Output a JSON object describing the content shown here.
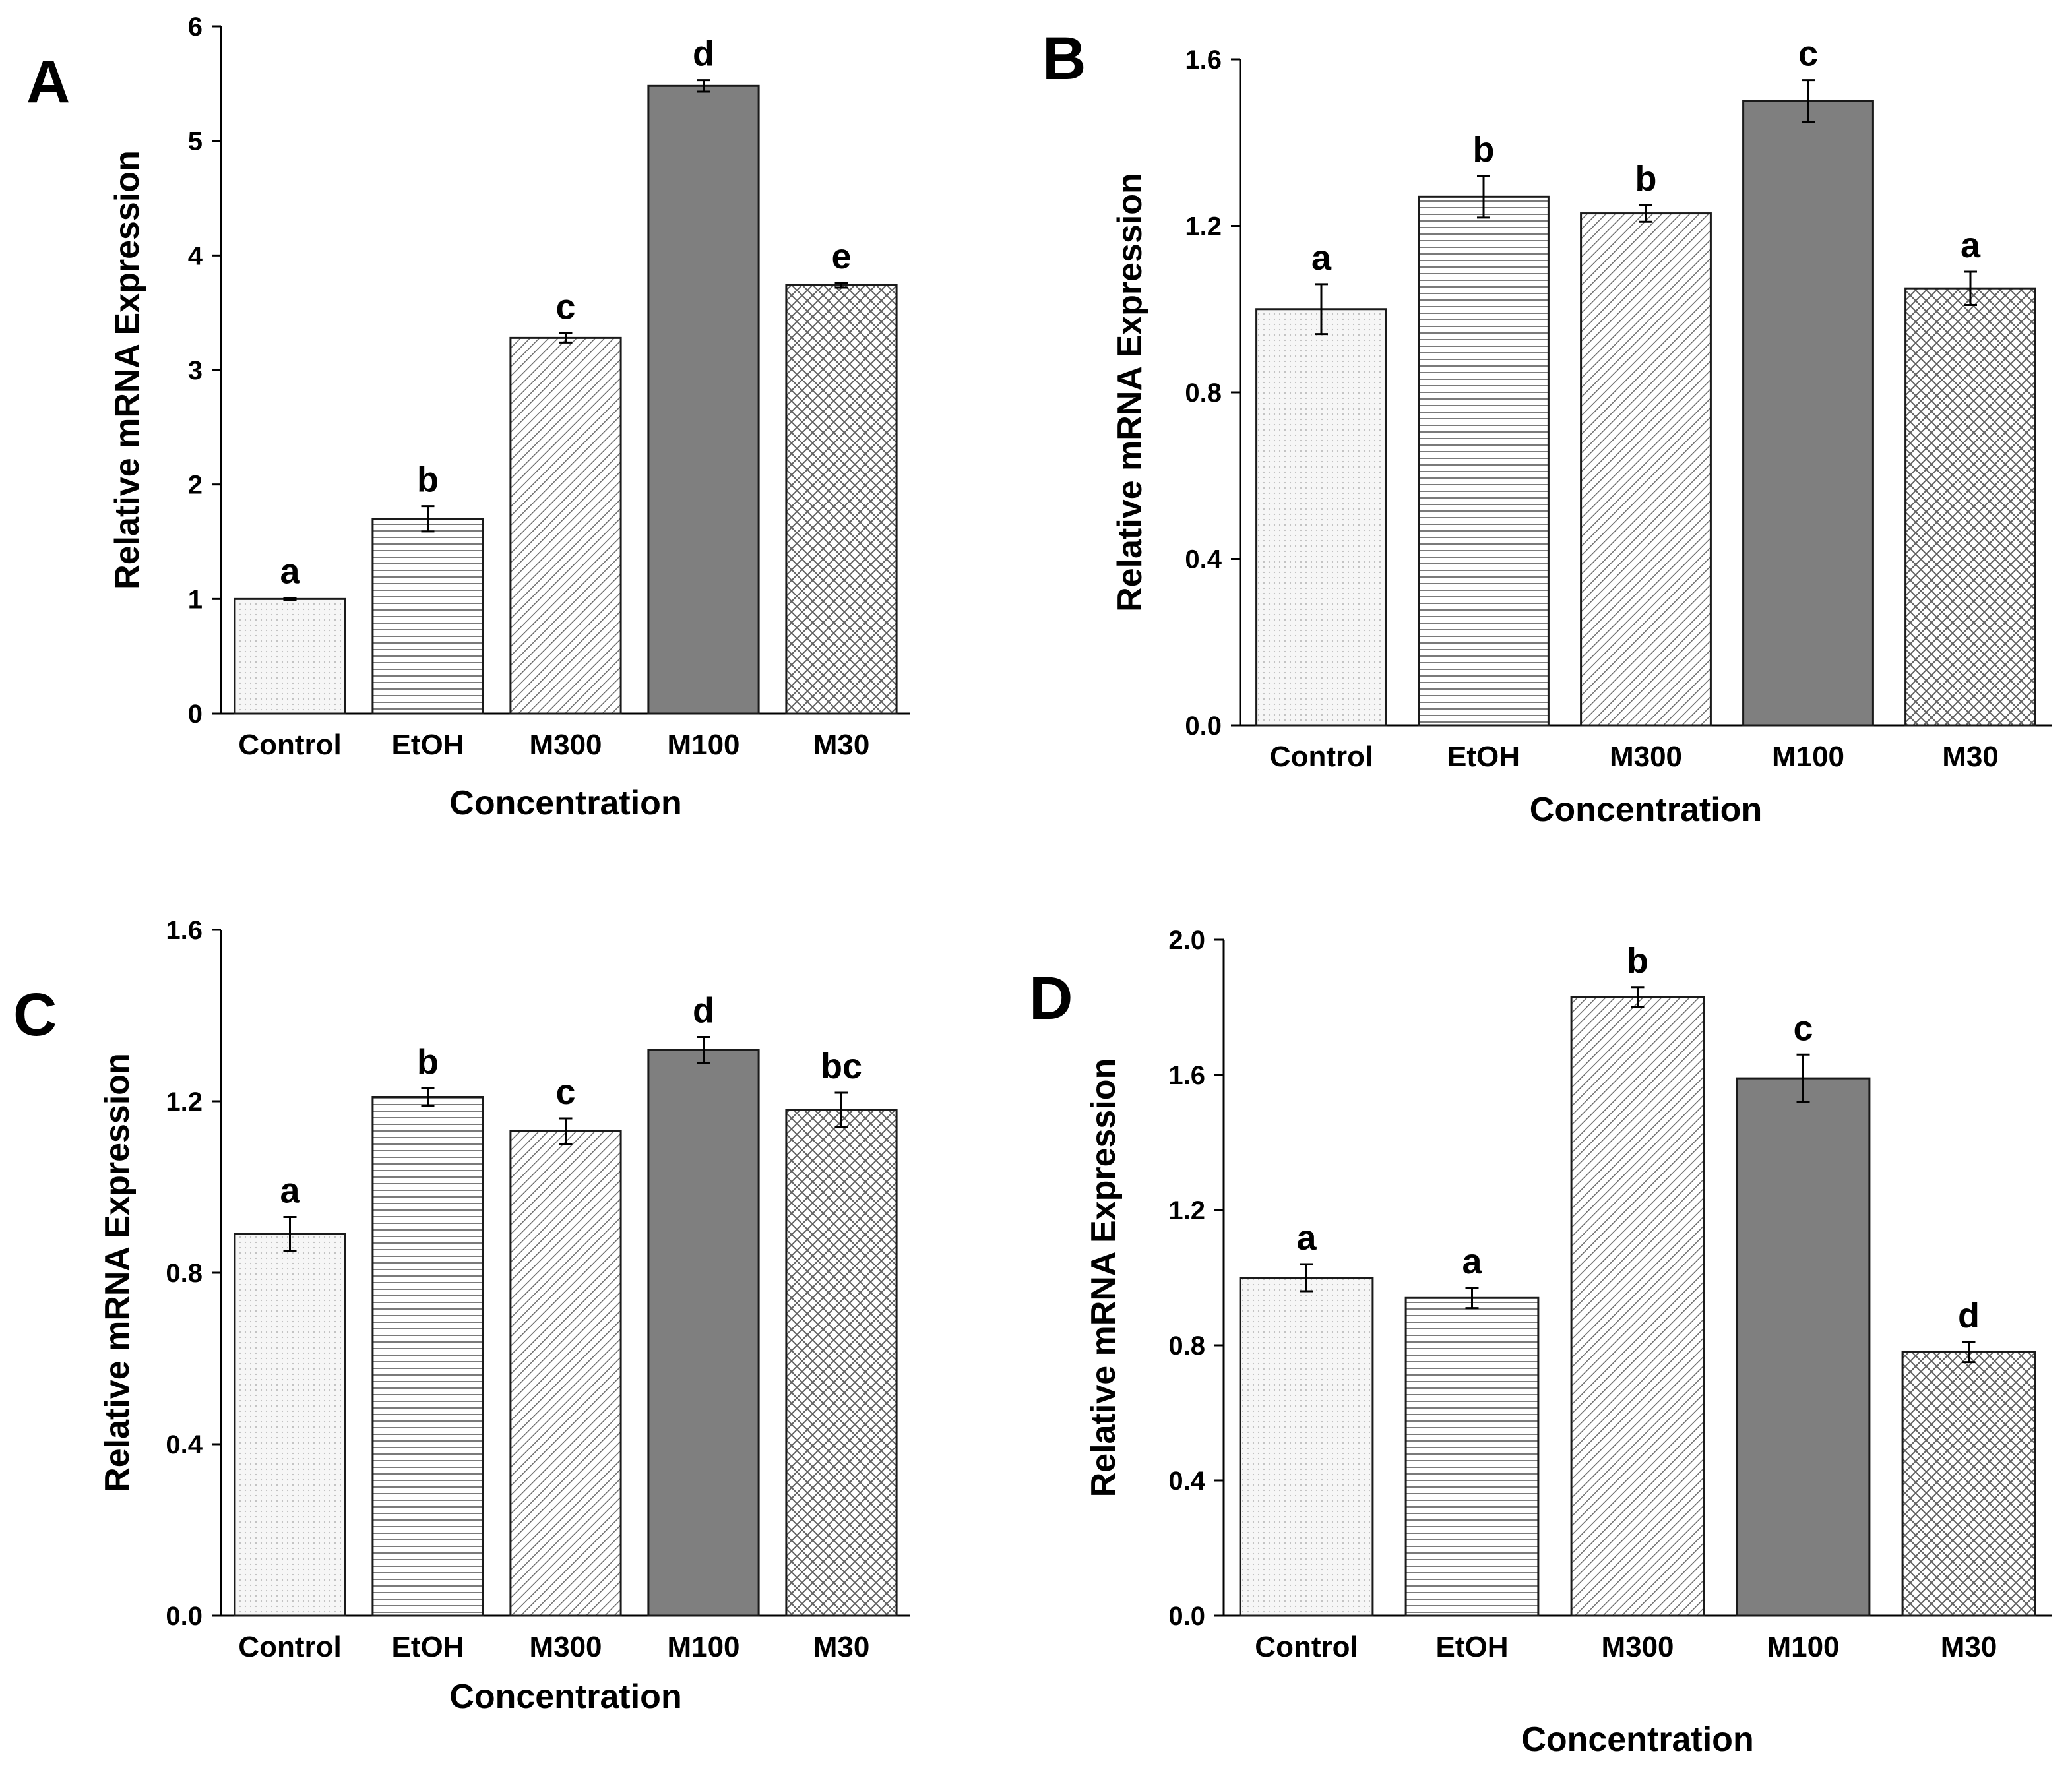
{
  "patterns": {
    "Control": "dots",
    "EtOH": "horizontal-lines",
    "M300": "diagonal-lines",
    "M100": "solid-dark",
    "M30": "crosshatch"
  },
  "colors": {
    "axis": "#000000",
    "bar_stroke": "#1a1a1a",
    "M100_fill": "#7f7f7f",
    "pattern_line": "#666666"
  },
  "chart_data": [
    {
      "panel": "A",
      "type": "bar",
      "categories": [
        "Control",
        "EtOH",
        "M300",
        "M100",
        "M30"
      ],
      "values": [
        1.0,
        1.7,
        3.28,
        5.48,
        3.74
      ],
      "errors": [
        0.01,
        0.11,
        0.04,
        0.05,
        0.02
      ],
      "significance": [
        "a",
        "b",
        "c",
        "d",
        "e"
      ],
      "xlabel": "Concentration",
      "ylabel": "Relative mRNA Expression",
      "ylim": [
        0,
        6
      ],
      "yticks": [
        "0",
        "1",
        "2",
        "3",
        "4",
        "5",
        "6"
      ],
      "ytick_values": [
        0,
        1,
        2,
        3,
        4,
        5,
        6
      ]
    },
    {
      "panel": "B",
      "type": "bar",
      "categories": [
        "Control",
        "EtOH",
        "M300",
        "M100",
        "M30"
      ],
      "values": [
        1.0,
        1.27,
        1.23,
        1.5,
        1.05
      ],
      "errors": [
        0.06,
        0.05,
        0.02,
        0.05,
        0.04
      ],
      "significance": [
        "a",
        "b",
        "b",
        "c",
        "a"
      ],
      "xlabel": "Concentration",
      "ylabel": "Relative mRNA Expression",
      "ylim": [
        0,
        1.6
      ],
      "yticks": [
        "0.0",
        "0.4",
        "0.8",
        "1.2",
        "1.6"
      ],
      "ytick_values": [
        0,
        0.4,
        0.8,
        1.2,
        1.6
      ]
    },
    {
      "panel": "C",
      "type": "bar",
      "categories": [
        "Control",
        "EtOH",
        "M300",
        "M100",
        "M30"
      ],
      "values": [
        0.89,
        1.21,
        1.13,
        1.32,
        1.18
      ],
      "errors": [
        0.04,
        0.02,
        0.03,
        0.03,
        0.04
      ],
      "significance": [
        "a",
        "b",
        "c",
        "d",
        "bc"
      ],
      "xlabel": "Concentration",
      "ylabel": "Relative mRNA Expression",
      "ylim": [
        0,
        1.6
      ],
      "yticks": [
        "0.0",
        "0.4",
        "0.8",
        "1.2",
        "1.6"
      ],
      "ytick_values": [
        0,
        0.4,
        0.8,
        1.2,
        1.6
      ]
    },
    {
      "panel": "D",
      "type": "bar",
      "categories": [
        "Control",
        "EtOH",
        "M300",
        "M100",
        "M30"
      ],
      "values": [
        1.0,
        0.94,
        1.83,
        1.59,
        0.78
      ],
      "errors": [
        0.04,
        0.03,
        0.03,
        0.07,
        0.03
      ],
      "significance": [
        "a",
        "a",
        "b",
        "c",
        "d"
      ],
      "xlabel": "Concentration",
      "ylabel": "Relative mRNA Expression",
      "ylim": [
        0,
        2.0
      ],
      "yticks": [
        "0.0",
        "0.4",
        "0.8",
        "1.2",
        "1.6",
        "2.0"
      ],
      "ytick_values": [
        0,
        0.4,
        0.8,
        1.2,
        1.6,
        2.0
      ]
    }
  ]
}
